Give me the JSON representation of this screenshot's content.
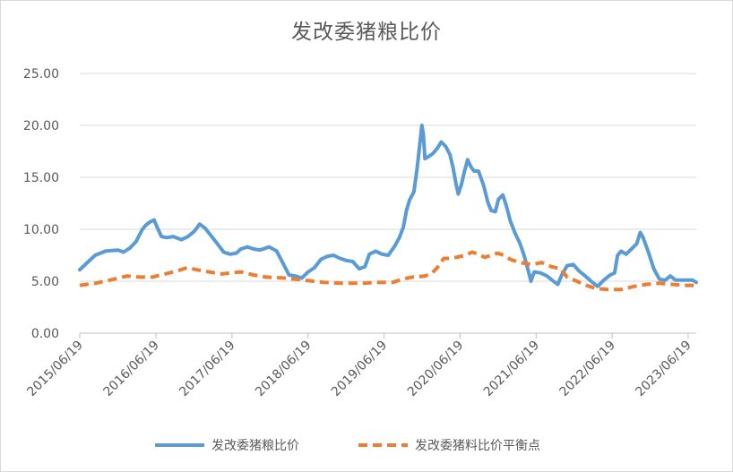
{
  "chart_data": {
    "type": "line",
    "title": "发改委猪粮比价",
    "xlabel": "",
    "ylabel": "",
    "ylim": [
      0,
      25
    ],
    "yticks": [
      "0.00",
      "5.00",
      "10.00",
      "15.00",
      "20.00",
      "25.00"
    ],
    "xticks": [
      "2015/06/19",
      "2016/06/19",
      "2017/06/19",
      "2018/06/19",
      "2019/06/19",
      "2020/06/19",
      "2021/06/19",
      "2022/06/19",
      "2023/06/19"
    ],
    "grid": true,
    "legend_position": "bottom",
    "x_start": "2015-06-19",
    "x_end": "2023-07-28",
    "series": [
      {
        "name": "发改委猪粮比价",
        "color": "#5b9bd5",
        "style": "solid",
        "points": [
          [
            "2015-06-19",
            6.1
          ],
          [
            "2015-07-20",
            6.7
          ],
          [
            "2015-09-01",
            7.5
          ],
          [
            "2015-10-20",
            7.9
          ],
          [
            "2015-12-20",
            8.0
          ],
          [
            "2016-01-15",
            7.8
          ],
          [
            "2016-02-15",
            8.2
          ],
          [
            "2016-03-15",
            8.8
          ],
          [
            "2016-04-15",
            10.0
          ],
          [
            "2016-05-01",
            10.4
          ],
          [
            "2016-05-20",
            10.7
          ],
          [
            "2016-06-10",
            10.9
          ],
          [
            "2016-06-25",
            10.2
          ],
          [
            "2016-07-15",
            9.3
          ],
          [
            "2016-08-10",
            9.2
          ],
          [
            "2016-09-10",
            9.3
          ],
          [
            "2016-10-20",
            9.0
          ],
          [
            "2016-11-20",
            9.3
          ],
          [
            "2016-12-20",
            9.8
          ],
          [
            "2017-01-15",
            10.5
          ],
          [
            "2017-02-10",
            10.1
          ],
          [
            "2017-03-10",
            9.4
          ],
          [
            "2017-04-10",
            8.6
          ],
          [
            "2017-05-10",
            7.8
          ],
          [
            "2017-06-10",
            7.6
          ],
          [
            "2017-07-10",
            7.7
          ],
          [
            "2017-08-01",
            8.1
          ],
          [
            "2017-09-01",
            8.3
          ],
          [
            "2017-10-01",
            8.1
          ],
          [
            "2017-11-01",
            8.0
          ],
          [
            "2017-12-15",
            8.3
          ],
          [
            "2018-01-20",
            7.9
          ],
          [
            "2018-02-20",
            6.7
          ],
          [
            "2018-03-20",
            5.6
          ],
          [
            "2018-04-20",
            5.5
          ],
          [
            "2018-05-20",
            5.3
          ],
          [
            "2018-06-20",
            5.9
          ],
          [
            "2018-07-20",
            6.3
          ],
          [
            "2018-08-20",
            7.1
          ],
          [
            "2018-09-20",
            7.4
          ],
          [
            "2018-10-20",
            7.5
          ],
          [
            "2018-11-20",
            7.2
          ],
          [
            "2018-12-20",
            7.0
          ],
          [
            "2019-01-20",
            6.9
          ],
          [
            "2019-02-20",
            6.2
          ],
          [
            "2019-03-20",
            6.4
          ],
          [
            "2019-04-10",
            7.6
          ],
          [
            "2019-05-10",
            7.9
          ],
          [
            "2019-06-10",
            7.6
          ],
          [
            "2019-07-10",
            7.5
          ],
          [
            "2019-08-10",
            8.4
          ],
          [
            "2019-09-01",
            9.2
          ],
          [
            "2019-09-20",
            10.2
          ],
          [
            "2019-10-05",
            11.8
          ],
          [
            "2019-10-20",
            12.8
          ],
          [
            "2019-11-10",
            13.6
          ],
          [
            "2019-11-25",
            15.8
          ],
          [
            "2019-12-10",
            18.5
          ],
          [
            "2019-12-18",
            20.0
          ],
          [
            "2019-12-25",
            19.2
          ],
          [
            "2020-01-02",
            16.8
          ],
          [
            "2020-01-20",
            17.0
          ],
          [
            "2020-02-10",
            17.3
          ],
          [
            "2020-03-01",
            17.8
          ],
          [
            "2020-03-20",
            18.4
          ],
          [
            "2020-04-10",
            18.0
          ],
          [
            "2020-05-01",
            17.2
          ],
          [
            "2020-05-15",
            16.0
          ],
          [
            "2020-06-01",
            14.2
          ],
          [
            "2020-06-10",
            13.4
          ],
          [
            "2020-06-25",
            14.3
          ],
          [
            "2020-07-10",
            15.6
          ],
          [
            "2020-07-25",
            16.7
          ],
          [
            "2020-08-10",
            16.0
          ],
          [
            "2020-08-25",
            15.6
          ],
          [
            "2020-09-15",
            15.6
          ],
          [
            "2020-10-10",
            14.2
          ],
          [
            "2020-10-30",
            12.6
          ],
          [
            "2020-11-15",
            11.8
          ],
          [
            "2020-12-05",
            11.7
          ],
          [
            "2020-12-20",
            12.9
          ],
          [
            "2021-01-10",
            13.3
          ],
          [
            "2021-01-25",
            12.4
          ],
          [
            "2021-02-15",
            10.8
          ],
          [
            "2021-03-10",
            9.6
          ],
          [
            "2021-04-01",
            8.7
          ],
          [
            "2021-04-20",
            7.6
          ],
          [
            "2021-05-10",
            6.2
          ],
          [
            "2021-05-25",
            5.0
          ],
          [
            "2021-06-10",
            5.9
          ],
          [
            "2021-07-10",
            5.8
          ],
          [
            "2021-08-10",
            5.5
          ],
          [
            "2021-09-10",
            5.0
          ],
          [
            "2021-10-01",
            4.7
          ],
          [
            "2021-10-20",
            5.6
          ],
          [
            "2021-11-15",
            6.5
          ],
          [
            "2021-12-15",
            6.6
          ],
          [
            "2022-01-10",
            6.0
          ],
          [
            "2022-02-10",
            5.5
          ],
          [
            "2022-03-10",
            5.0
          ],
          [
            "2022-04-10",
            4.5
          ],
          [
            "2022-05-10",
            5.1
          ],
          [
            "2022-06-10",
            5.6
          ],
          [
            "2022-07-01",
            5.8
          ],
          [
            "2022-07-15",
            7.5
          ],
          [
            "2022-08-01",
            7.9
          ],
          [
            "2022-08-25",
            7.6
          ],
          [
            "2022-09-20",
            8.1
          ],
          [
            "2022-10-15",
            8.6
          ],
          [
            "2022-11-01",
            9.7
          ],
          [
            "2022-11-15",
            9.2
          ],
          [
            "2022-12-10",
            7.8
          ],
          [
            "2023-01-05",
            6.2
          ],
          [
            "2023-02-01",
            5.2
          ],
          [
            "2023-03-01",
            5.1
          ],
          [
            "2023-03-25",
            5.5
          ],
          [
            "2023-04-20",
            5.1
          ],
          [
            "2023-06-01",
            5.1
          ],
          [
            "2023-07-10",
            5.1
          ],
          [
            "2023-07-28",
            4.9
          ]
        ]
      },
      {
        "name": "发改委猪料比价平衡点",
        "color": "#ed7d31",
        "style": "dashed",
        "points": [
          [
            "2015-06-19",
            4.6
          ],
          [
            "2015-09-01",
            4.8
          ],
          [
            "2015-12-01",
            5.2
          ],
          [
            "2016-02-01",
            5.5
          ],
          [
            "2016-04-01",
            5.4
          ],
          [
            "2016-06-01",
            5.4
          ],
          [
            "2016-08-01",
            5.7
          ],
          [
            "2016-10-01",
            6.0
          ],
          [
            "2016-11-15",
            6.3
          ],
          [
            "2017-01-01",
            6.1
          ],
          [
            "2017-03-01",
            5.9
          ],
          [
            "2017-05-01",
            5.7
          ],
          [
            "2017-06-15",
            5.8
          ],
          [
            "2017-08-01",
            5.9
          ],
          [
            "2017-10-01",
            5.6
          ],
          [
            "2017-12-01",
            5.4
          ],
          [
            "2018-03-01",
            5.3
          ],
          [
            "2018-06-01",
            5.1
          ],
          [
            "2018-09-01",
            4.9
          ],
          [
            "2018-12-01",
            4.8
          ],
          [
            "2019-03-01",
            4.8
          ],
          [
            "2019-06-01",
            4.9
          ],
          [
            "2019-08-01",
            4.9
          ],
          [
            "2019-09-15",
            5.2
          ],
          [
            "2019-11-01",
            5.4
          ],
          [
            "2020-01-01",
            5.5
          ],
          [
            "2020-02-01",
            5.7
          ],
          [
            "2020-03-01",
            6.3
          ],
          [
            "2020-04-01",
            7.2
          ],
          [
            "2020-05-01",
            7.2
          ],
          [
            "2020-06-01",
            7.3
          ],
          [
            "2020-07-15",
            7.5
          ],
          [
            "2020-08-15",
            7.8
          ],
          [
            "2020-09-15",
            7.6
          ],
          [
            "2020-10-15",
            7.3
          ],
          [
            "2020-11-15",
            7.5
          ],
          [
            "2020-12-15",
            7.7
          ],
          [
            "2021-01-15",
            7.5
          ],
          [
            "2021-02-15",
            7.1
          ],
          [
            "2021-04-01",
            6.8
          ],
          [
            "2021-06-01",
            6.6
          ],
          [
            "2021-07-15",
            6.8
          ],
          [
            "2021-09-01",
            6.4
          ],
          [
            "2021-10-15",
            6.2
          ],
          [
            "2021-11-15",
            5.4
          ],
          [
            "2022-01-01",
            5.0
          ],
          [
            "2022-02-15",
            4.6
          ],
          [
            "2022-04-01",
            4.3
          ],
          [
            "2022-06-01",
            4.2
          ],
          [
            "2022-08-01",
            4.2
          ],
          [
            "2022-10-01",
            4.5
          ],
          [
            "2022-12-01",
            4.7
          ],
          [
            "2023-02-01",
            4.8
          ],
          [
            "2023-04-01",
            4.7
          ],
          [
            "2023-06-01",
            4.6
          ],
          [
            "2023-07-28",
            4.6
          ]
        ]
      }
    ]
  }
}
